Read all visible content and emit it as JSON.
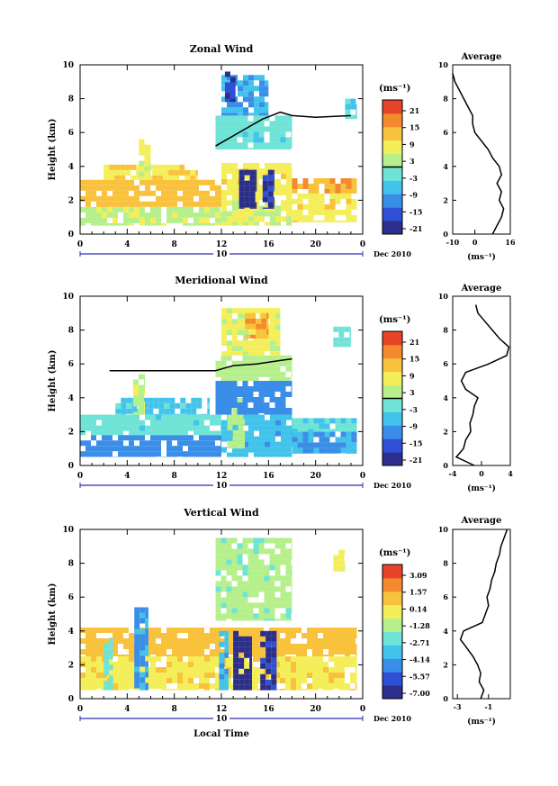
{
  "chart_data": [
    {
      "type": "heatmap",
      "title": "Zonal Wind",
      "ylabel": "Height (km)",
      "xlabel": "",
      "x_ticks": [
        "0",
        "4",
        "8",
        "12",
        "16",
        "20",
        "0"
      ],
      "y_ticks": [
        "0",
        "2",
        "4",
        "6",
        "8",
        "10"
      ],
      "xlim": [
        0,
        24
      ],
      "ylim": [
        0,
        10
      ],
      "date_label": "10",
      "date_suffix": "Dec 2010",
      "grid": false,
      "colorbar": {
        "unit": "(ms⁻¹)",
        "ticks": [
          "21",
          "15",
          "9",
          "3",
          "-3",
          "-9",
          "-15",
          "-21"
        ],
        "range": [
          -24,
          24
        ],
        "colors": [
          "#2b2e8c",
          "#2f4fd4",
          "#3b8ee8",
          "#41c3ec",
          "#6fe3d6",
          "#b6f08c",
          "#f4ee5a",
          "#f9c23c",
          "#f38a2e",
          "#e8442a"
        ]
      },
      "cells": [
        {
          "t0": 0,
          "t1": 12,
          "z0": 0.5,
          "z1": 1.6,
          "v": 4
        },
        {
          "t0": 0,
          "t1": 12,
          "z0": 1.6,
          "z1": 3.2,
          "v": 12
        },
        {
          "t0": 2,
          "t1": 10,
          "z0": 3.2,
          "z1": 4.1,
          "v": 9
        },
        {
          "t0": 5,
          "t1": 6,
          "z0": 3.2,
          "z1": 5.6,
          "v": 6
        },
        {
          "t0": 12,
          "t1": 18,
          "z0": 0.5,
          "z1": 2.0,
          "v": 5
        },
        {
          "t0": 12,
          "t1": 18,
          "z0": 2.0,
          "z1": 4.2,
          "v": 8
        },
        {
          "t0": 13.5,
          "t1": 15,
          "z0": 1.5,
          "z1": 3.8,
          "v": -22
        },
        {
          "t0": 15.5,
          "t1": 16.5,
          "z0": 1.5,
          "z1": 3.8,
          "v": -20
        },
        {
          "t0": 18,
          "t1": 23.5,
          "z0": 0.7,
          "z1": 2.4,
          "v": 8
        },
        {
          "t0": 18,
          "t1": 23.5,
          "z0": 2.4,
          "z1": 3.3,
          "v": 14
        },
        {
          "t0": 11.5,
          "t1": 18,
          "z0": 5.0,
          "z1": 7.0,
          "v": -3
        },
        {
          "t0": 12,
          "t1": 16,
          "z0": 7.0,
          "z1": 9.4,
          "v": -10
        },
        {
          "t0": 12.3,
          "t1": 13.2,
          "z0": 7.8,
          "z1": 9.6,
          "v": -19
        },
        {
          "t0": 22.5,
          "t1": 23.5,
          "z0": 6.8,
          "z1": 8.0,
          "v": -6
        }
      ],
      "contour": {
        "label": "0 ms⁻¹",
        "points": [
          [
            11.5,
            5.2
          ],
          [
            12.5,
            5.6
          ],
          [
            14,
            6.2
          ],
          [
            15.5,
            6.8
          ],
          [
            17,
            7.2
          ],
          [
            18,
            7.0
          ],
          [
            20,
            6.9
          ],
          [
            23,
            7.0
          ]
        ]
      },
      "profile": {
        "title": "Average",
        "xlabel": "(ms⁻¹)",
        "x_ticks": [
          "-10",
          "0",
          "16"
        ],
        "xlim": [
          -10,
          16
        ],
        "z": [
          0,
          0.5,
          1,
          1.5,
          2,
          2.5,
          3,
          3.5,
          4,
          4.5,
          5,
          5.5,
          6,
          6.5,
          7,
          7.5,
          8,
          8.5,
          9,
          9.5
        ],
        "v": [
          8,
          10,
          12,
          13,
          11,
          12,
          10,
          12,
          11,
          8,
          6,
          3,
          0,
          -1,
          -1,
          -3,
          -5,
          -7,
          -9,
          -10
        ]
      }
    },
    {
      "type": "heatmap",
      "title": "Meridional Wind",
      "ylabel": "Height (km)",
      "xlabel": "",
      "x_ticks": [
        "0",
        "4",
        "8",
        "12",
        "16",
        "20",
        "0"
      ],
      "y_ticks": [
        "0",
        "2",
        "4",
        "6",
        "8",
        "10"
      ],
      "xlim": [
        0,
        24
      ],
      "ylim": [
        0,
        10
      ],
      "date_label": "10",
      "date_suffix": "Dec 2010",
      "grid": false,
      "colorbar": {
        "unit": "(ms⁻¹)",
        "ticks": [
          "21",
          "15",
          "9",
          "3",
          "-3",
          "-9",
          "-15",
          "-21"
        ],
        "range": [
          -24,
          24
        ],
        "colors": [
          "#2b2e8c",
          "#2f4fd4",
          "#3b8ee8",
          "#41c3ec",
          "#6fe3d6",
          "#b6f08c",
          "#f4ee5a",
          "#f9c23c",
          "#f38a2e",
          "#e8442a"
        ]
      },
      "cells": [
        {
          "t0": 0,
          "t1": 12,
          "z0": 0.5,
          "z1": 1.8,
          "v": -12
        },
        {
          "t0": 0,
          "t1": 12,
          "z0": 1.8,
          "z1": 3.0,
          "v": -3
        },
        {
          "t0": 3,
          "t1": 11,
          "z0": 3.0,
          "z1": 4.0,
          "v": -6
        },
        {
          "t0": 4.5,
          "t1": 5.5,
          "z0": 3.0,
          "z1": 5.4,
          "v": 4
        },
        {
          "t0": 12,
          "t1": 18,
          "z0": 0.5,
          "z1": 3.0,
          "v": -8
        },
        {
          "t0": 12.5,
          "t1": 14,
          "z0": 1.0,
          "z1": 4.0,
          "v": 3
        },
        {
          "t0": 18,
          "t1": 23.5,
          "z0": 0.7,
          "z1": 2.0,
          "v": -10
        },
        {
          "t0": 18,
          "t1": 23.5,
          "z0": 2.0,
          "z1": 2.8,
          "v": -4
        },
        {
          "t0": 11.5,
          "t1": 18,
          "z0": 3.0,
          "z1": 5.0,
          "v": -12
        },
        {
          "t0": 11.5,
          "t1": 18,
          "z0": 5.0,
          "z1": 6.5,
          "v": 2
        },
        {
          "t0": 12,
          "t1": 17,
          "z0": 6.5,
          "z1": 9.3,
          "v": 6
        },
        {
          "t0": 14,
          "t1": 16,
          "z0": 7.5,
          "z1": 9.0,
          "v": 14
        },
        {
          "t0": 21.5,
          "t1": 23,
          "z0": 7.0,
          "z1": 8.2,
          "v": -2
        }
      ],
      "contour": {
        "label": "0 ms⁻¹",
        "points": [
          [
            2.5,
            5.6
          ],
          [
            6,
            5.6
          ],
          [
            9,
            5.6
          ],
          [
            11.5,
            5.6
          ],
          [
            13,
            5.9
          ],
          [
            15,
            6.0
          ],
          [
            17,
            6.2
          ],
          [
            18,
            6.3
          ]
        ]
      },
      "profile": {
        "title": "Average",
        "xlabel": "(ms⁻¹)",
        "x_ticks": [
          "-4",
          "0",
          "4"
        ],
        "xlim": [
          -4,
          4
        ],
        "z": [
          0,
          0.5,
          1,
          1.5,
          2,
          2.5,
          3,
          3.5,
          4,
          4.5,
          5,
          5.5,
          6,
          6.5,
          7,
          7.5,
          8,
          8.5,
          9,
          9.5
        ],
        "v": [
          -1,
          -3.5,
          -2.5,
          -2.2,
          -1.5,
          -1.6,
          -1.2,
          -1.0,
          -0.5,
          -2.2,
          -2.8,
          -2.2,
          1,
          3.5,
          3.8,
          2.5,
          1.5,
          0.5,
          -0.5,
          -0.8
        ]
      }
    },
    {
      "type": "heatmap",
      "title": "Vertical Wind",
      "ylabel": "Height (km)",
      "xlabel": "Local Time",
      "x_ticks": [
        "0",
        "4",
        "8",
        "12",
        "16",
        "20",
        "0"
      ],
      "y_ticks": [
        "0",
        "2",
        "4",
        "6",
        "8",
        "10"
      ],
      "xlim": [
        0,
        24
      ],
      "ylim": [
        0,
        10
      ],
      "date_label": "10",
      "date_suffix": "Dec 2010",
      "grid": false,
      "colorbar": {
        "unit": "(ms⁻¹)",
        "ticks": [
          "3.09",
          "1.57",
          "0.14",
          "-1.28",
          "-2.71",
          "-4.14",
          "-5.57",
          "-7.00"
        ],
        "range": [
          -7.85,
          3.95
        ],
        "colors": [
          "#2b2e8c",
          "#2f4fd4",
          "#3b8ee8",
          "#41c3ec",
          "#6fe3d6",
          "#b6f08c",
          "#f4ee5a",
          "#f9c23c",
          "#f38a2e",
          "#e8442a"
        ]
      },
      "cells": [
        {
          "t0": 0,
          "t1": 23.5,
          "z0": 0.5,
          "z1": 2.5,
          "v": 0.1
        },
        {
          "t0": 0,
          "t1": 23.5,
          "z0": 2.5,
          "z1": 4.2,
          "v": 0.9
        },
        {
          "t0": 2,
          "t1": 2.8,
          "z0": 0.5,
          "z1": 3.6,
          "v": -2.4
        },
        {
          "t0": 4.6,
          "t1": 5.8,
          "z0": 0.5,
          "z1": 5.4,
          "v": -4.6
        },
        {
          "t0": 11.5,
          "t1": 18,
          "z0": 4.6,
          "z1": 9.5,
          "v": -1.6
        },
        {
          "t0": 13,
          "t1": 14.6,
          "z0": 0.5,
          "z1": 4.0,
          "v": -7.3
        },
        {
          "t0": 15.3,
          "t1": 16.7,
          "z0": 0.5,
          "z1": 4.0,
          "v": -6.8
        },
        {
          "t0": 11.8,
          "t1": 12.6,
          "z0": 0.5,
          "z1": 4.0,
          "v": -4.0
        },
        {
          "t0": 21.5,
          "t1": 22.5,
          "z0": 7.5,
          "z1": 8.8,
          "v": -0.6
        }
      ],
      "contour": null,
      "profile": {
        "title": "Average",
        "xlabel": "(ms⁻¹)",
        "x_ticks": [
          "-3",
          "-1"
        ],
        "xlim": [
          -3.3,
          0.4
        ],
        "z": [
          0,
          0.5,
          1,
          1.5,
          2,
          2.5,
          3,
          3.5,
          4,
          4.5,
          5,
          5.5,
          6,
          6.5,
          7,
          7.5,
          8,
          8.5,
          9,
          9.5,
          10
        ],
        "v": [
          -1.5,
          -1.3,
          -1.6,
          -1.5,
          -1.7,
          -2.0,
          -2.4,
          -2.8,
          -2.6,
          -1.4,
          -1.2,
          -1.0,
          -1.1,
          -0.9,
          -0.8,
          -0.6,
          -0.5,
          -0.3,
          -0.2,
          0.0,
          0.2
        ]
      }
    }
  ]
}
